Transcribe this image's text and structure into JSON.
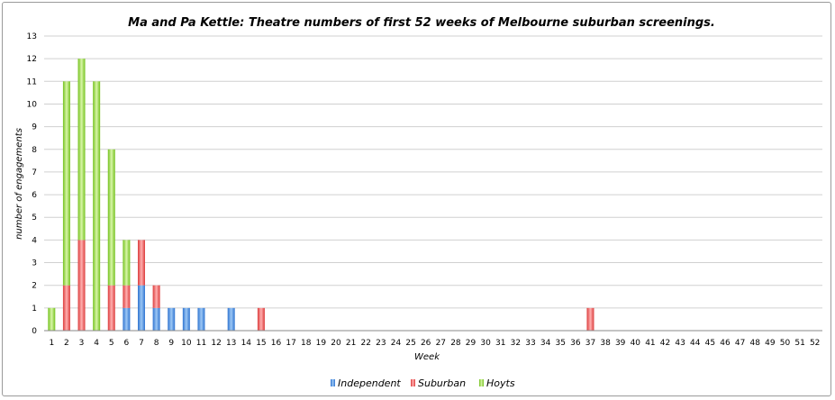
{
  "chart_data": {
    "type": "bar",
    "stacked": true,
    "title": "Ma and Pa Kettle: Theatre numbers of first 52 weeks of Melbourne suburban screenings.",
    "xlabel": "Week",
    "ylabel": "number of engagements",
    "ylim": [
      0,
      13
    ],
    "yticks": [
      0,
      1,
      2,
      3,
      4,
      5,
      6,
      7,
      8,
      9,
      10,
      11,
      12,
      13
    ],
    "grid": true,
    "legend_position": "bottom",
    "categories": [
      "1",
      "2",
      "3",
      "4",
      "5",
      "6",
      "7",
      "8",
      "9",
      "10",
      "11",
      "12",
      "13",
      "14",
      "15",
      "16",
      "17",
      "18",
      "19",
      "20",
      "21",
      "22",
      "23",
      "24",
      "25",
      "26",
      "27",
      "28",
      "29",
      "30",
      "31",
      "32",
      "33",
      "34",
      "35",
      "36",
      "37",
      "38",
      "39",
      "40",
      "41",
      "42",
      "43",
      "44",
      "45",
      "46",
      "47",
      "48",
      "49",
      "50",
      "51",
      "52"
    ],
    "series": [
      {
        "name": "Independent",
        "color": "#4a90e2",
        "values": [
          0,
          0,
          0,
          0,
          0,
          1,
          2,
          1,
          1,
          1,
          1,
          0,
          1,
          0,
          0,
          0,
          0,
          0,
          0,
          0,
          0,
          0,
          0,
          0,
          0,
          0,
          0,
          0,
          0,
          0,
          0,
          0,
          0,
          0,
          0,
          0,
          0,
          0,
          0,
          0,
          0,
          0,
          0,
          0,
          0,
          0,
          0,
          0,
          0,
          0,
          0,
          0
        ]
      },
      {
        "name": "Suburban",
        "color": "#e85a5a",
        "values": [
          0,
          2,
          4,
          0,
          2,
          1,
          2,
          1,
          0,
          0,
          0,
          0,
          0,
          0,
          1,
          0,
          0,
          0,
          0,
          0,
          0,
          0,
          0,
          0,
          0,
          0,
          0,
          0,
          0,
          0,
          0,
          0,
          0,
          0,
          0,
          0,
          1,
          0,
          0,
          0,
          0,
          0,
          0,
          0,
          0,
          0,
          0,
          0,
          0,
          0,
          0,
          0
        ]
      },
      {
        "name": "Hoyts",
        "color": "#8fd43a",
        "values": [
          1,
          9,
          8,
          11,
          6,
          2,
          0,
          0,
          0,
          0,
          0,
          0,
          0,
          0,
          0,
          0,
          0,
          0,
          0,
          0,
          0,
          0,
          0,
          0,
          0,
          0,
          0,
          0,
          0,
          0,
          0,
          0,
          0,
          0,
          0,
          0,
          0,
          0,
          0,
          0,
          0,
          0,
          0,
          0,
          0,
          0,
          0,
          0,
          0,
          0,
          0,
          0
        ]
      }
    ]
  }
}
